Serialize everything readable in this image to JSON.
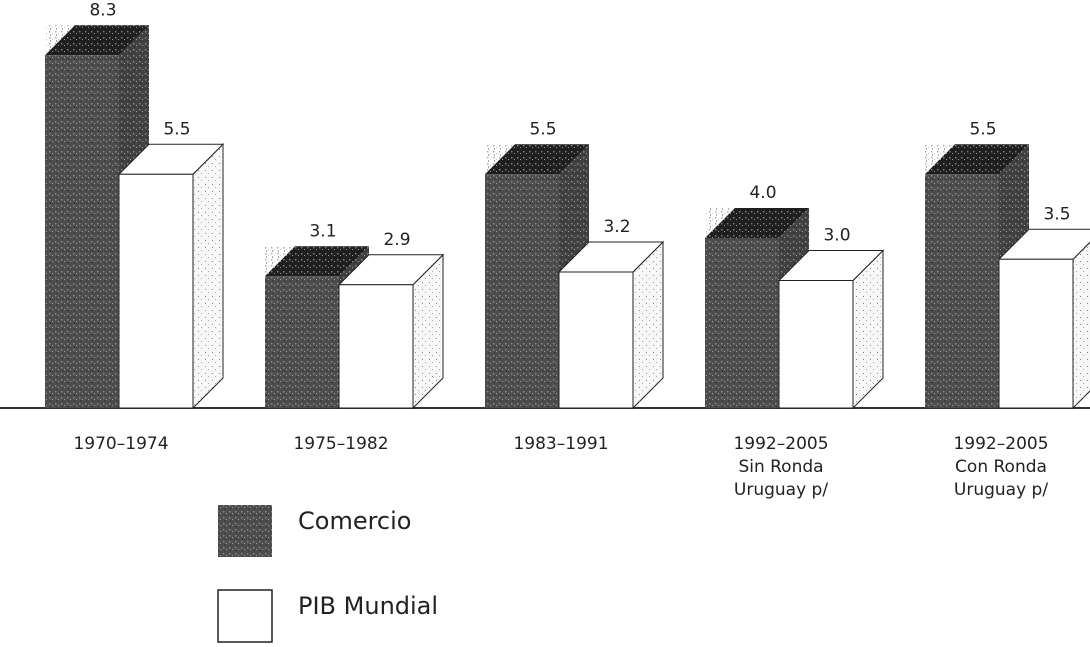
{
  "chart_data": {
    "type": "bar3d",
    "categories": [
      "1970–1974",
      "1975–1982",
      "1983–1991",
      "1992–2005\nSin Ronda\nUruguay p/",
      "1992–2005\nCon Ronda\nUruguay p/"
    ],
    "series": [
      {
        "name": "Comercio",
        "color": "#4d4d4d",
        "values": [
          8.3,
          3.1,
          5.5,
          4.0,
          5.5
        ],
        "value_labels": [
          "8.3",
          "3.1",
          "5.5",
          "4.0",
          "5.5"
        ]
      },
      {
        "name": "PIB Mundial",
        "color": "#ffffff",
        "values": [
          5.5,
          2.9,
          3.2,
          3.0,
          3.5
        ],
        "value_labels": [
          "5.5",
          "2.9",
          "3.2",
          "3.0",
          "3.5"
        ]
      }
    ]
  }
}
